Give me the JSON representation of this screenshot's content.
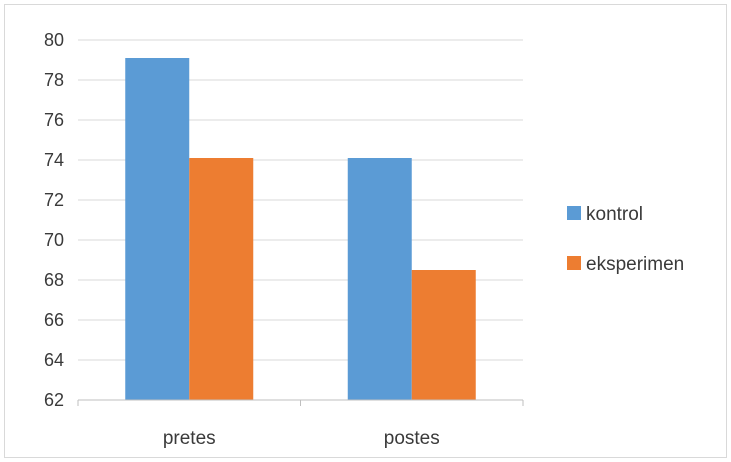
{
  "chart_data": {
    "type": "bar",
    "categories": [
      "pretes",
      "postes"
    ],
    "series": [
      {
        "name": "kontrol",
        "values": [
          79.1,
          74.1
        ],
        "color": "#5b9bd5"
      },
      {
        "name": "eksperimen",
        "values": [
          74.1,
          68.5
        ],
        "color": "#ed7d31"
      }
    ],
    "ylim": [
      62,
      80
    ],
    "yticks": [
      62,
      64,
      66,
      68,
      70,
      72,
      74,
      76,
      78,
      80
    ],
    "grid": true,
    "legend_position": "right",
    "title": "",
    "xlabel": "",
    "ylabel": ""
  }
}
